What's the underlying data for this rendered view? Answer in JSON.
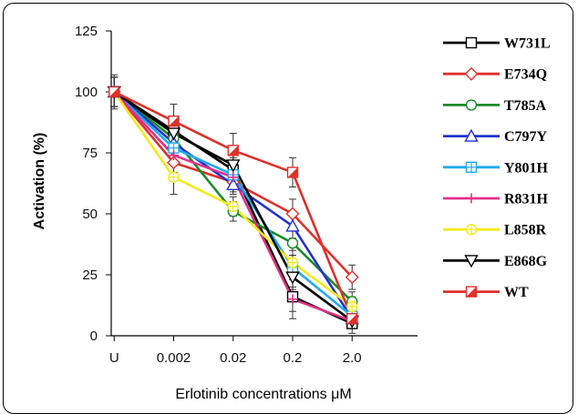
{
  "chart_data": {
    "type": "line",
    "xlabel": "Erlotinib concentrations μM",
    "ylabel": "Activation (%)",
    "categories": [
      "U",
      "0.002",
      "0.02",
      "0.2",
      "2.0"
    ],
    "yticks": [
      0,
      25,
      50,
      75,
      100,
      125
    ],
    "ylim": [
      0,
      125
    ],
    "legend_position": "right",
    "grid": false,
    "series": [
      {
        "name": "W731L",
        "color": "#000000",
        "marker": "square-open",
        "values": [
          100,
          84,
          68,
          16,
          5
        ],
        "errors": [
          7,
          4,
          5,
          9,
          4
        ]
      },
      {
        "name": "E734Q",
        "color": "#e0302a",
        "marker": "diamond-open",
        "values": [
          100,
          71,
          63,
          50,
          24
        ],
        "errors": [
          6,
          4,
          4,
          6,
          5
        ]
      },
      {
        "name": "T785A",
        "color": "#1a8a2a",
        "marker": "circle-open",
        "values": [
          100,
          81,
          51,
          38,
          14
        ],
        "errors": [
          6,
          3,
          4,
          5,
          4
        ]
      },
      {
        "name": "C797Y",
        "color": "#2233cc",
        "marker": "triangle-open",
        "values": [
          100,
          79,
          62,
          45,
          7
        ],
        "errors": [
          6,
          3,
          4,
          5,
          3
        ]
      },
      {
        "name": "Y801H",
        "color": "#22aaee",
        "marker": "square-plus",
        "values": [
          100,
          77,
          66,
          28,
          8
        ],
        "errors": [
          6,
          3,
          4,
          5,
          3
        ]
      },
      {
        "name": "R831H",
        "color": "#e0308a",
        "marker": "plus",
        "values": [
          100,
          74,
          65,
          15,
          6
        ],
        "errors": [
          6,
          3,
          4,
          5,
          3
        ]
      },
      {
        "name": "L858R",
        "color": "#f2ea1a",
        "marker": "circle-plus",
        "values": [
          100,
          65,
          53,
          30,
          12
        ],
        "errors": [
          6,
          7,
          4,
          5,
          4
        ]
      },
      {
        "name": "E868G",
        "color": "#000000",
        "marker": "triangle-down",
        "values": [
          100,
          83,
          70,
          24,
          6
        ],
        "errors": [
          6,
          3,
          4,
          5,
          3
        ]
      },
      {
        "name": "WT",
        "color": "#e0302a",
        "marker": "square-half",
        "values": [
          100,
          88,
          76,
          67,
          7
        ],
        "errors": [
          6,
          7,
          7,
          6,
          3
        ]
      }
    ]
  }
}
